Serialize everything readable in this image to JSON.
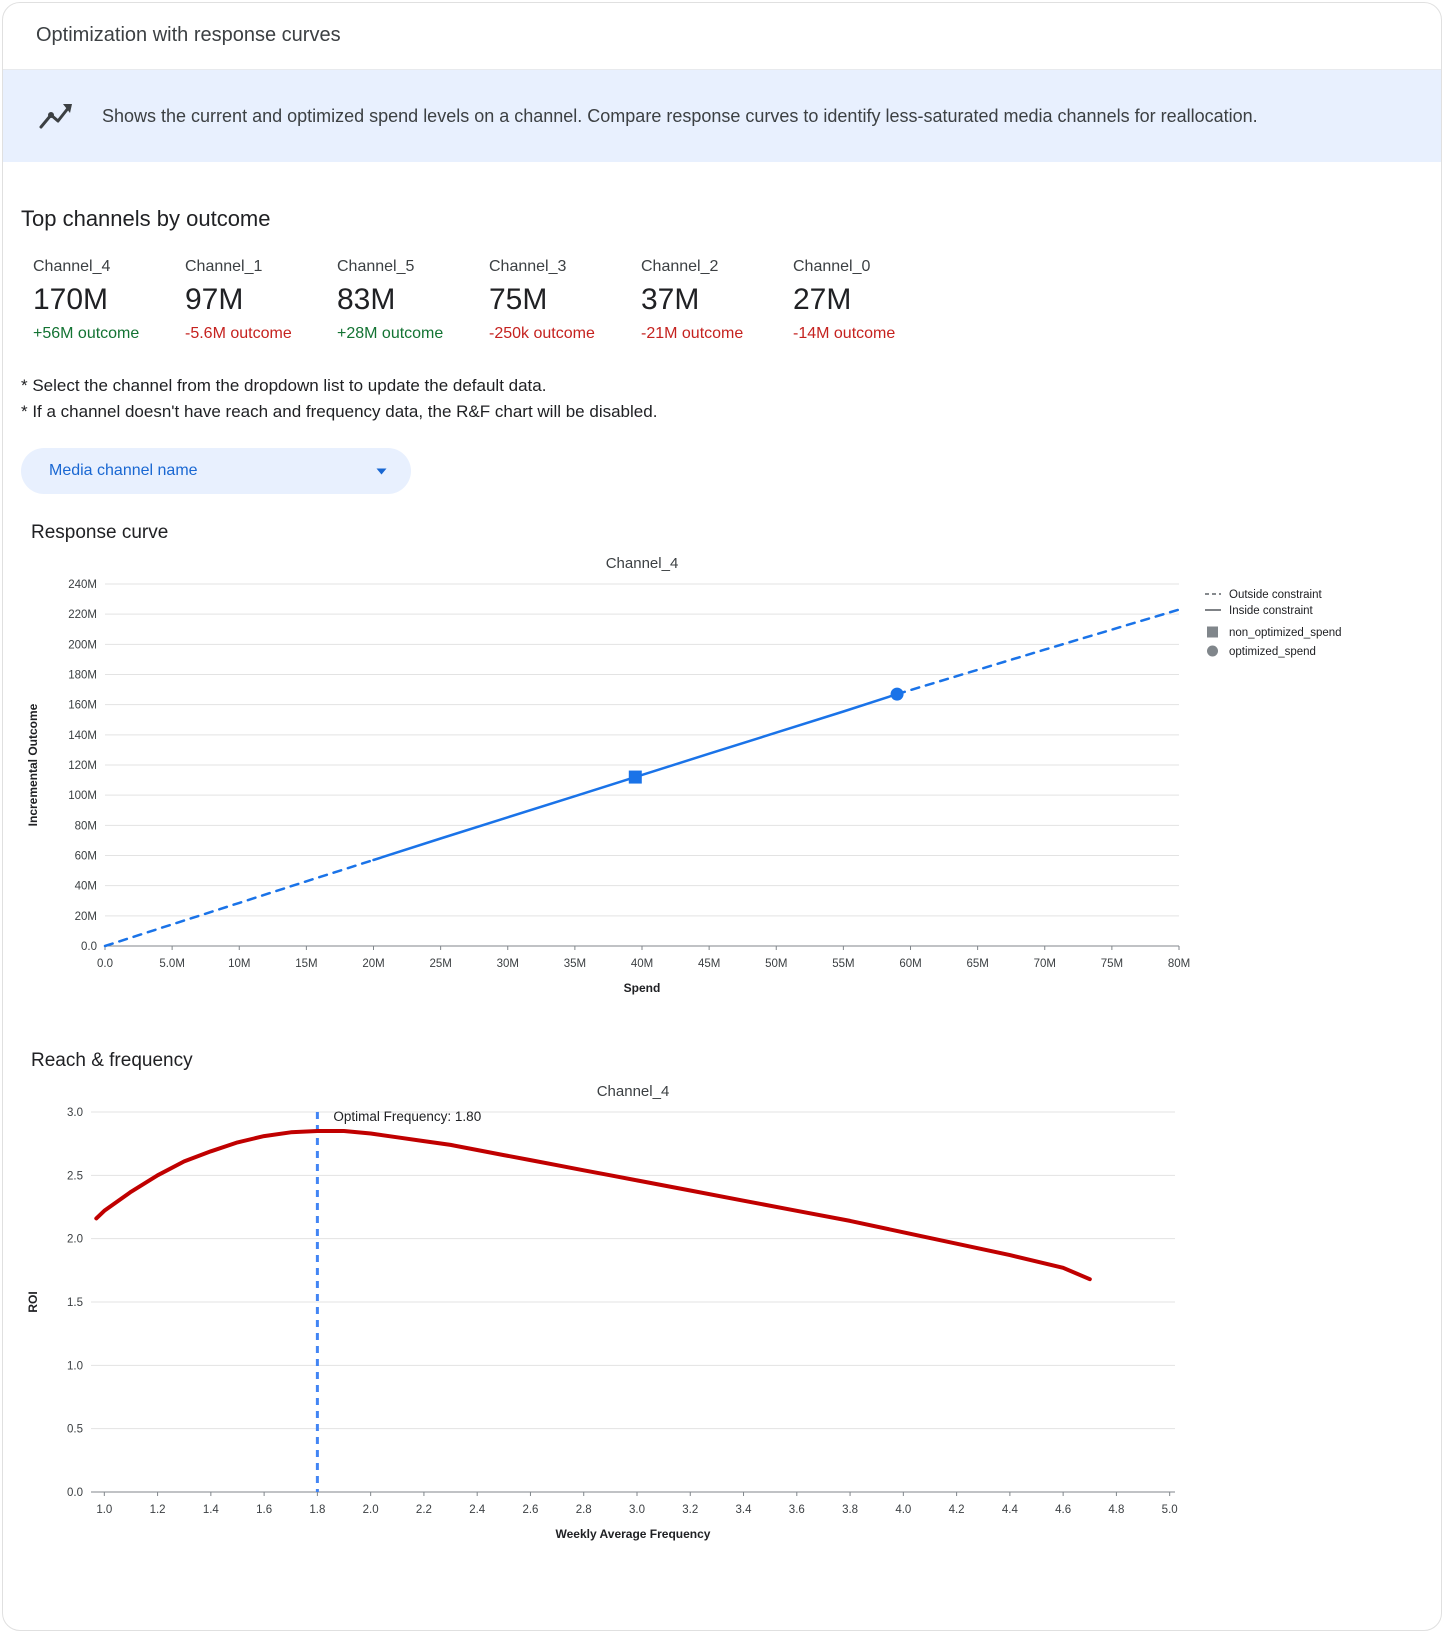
{
  "header": {
    "title": "Optimization with response curves"
  },
  "banner": {
    "text": "Shows the current and optimized spend levels on a channel. Compare response curves to identify less-saturated media channels for reallocation."
  },
  "colors": {
    "accent_blue": "#1a73e8",
    "link_blue": "#1967d2",
    "positive_green": "#137333",
    "negative_red": "#c5221f",
    "banner_bg": "#e8f0fe",
    "rf_curve_red": "#c00000",
    "optimal_freq_line_blue": "#4285f4"
  },
  "top_channels": {
    "title": "Top channels by outcome",
    "items": [
      {
        "name": "Channel_4",
        "value": "170M",
        "delta": "+56M outcome",
        "direction": "up"
      },
      {
        "name": "Channel_1",
        "value": "97M",
        "delta": "-5.6M outcome",
        "direction": "down"
      },
      {
        "name": "Channel_5",
        "value": "83M",
        "delta": "+28M outcome",
        "direction": "up"
      },
      {
        "name": "Channel_3",
        "value": "75M",
        "delta": "-250k outcome",
        "direction": "down"
      },
      {
        "name": "Channel_2",
        "value": "37M",
        "delta": "-21M outcome",
        "direction": "down"
      },
      {
        "name": "Channel_0",
        "value": "27M",
        "delta": "-14M outcome",
        "direction": "down"
      }
    ]
  },
  "notes": [
    "* Select the channel from the dropdown list to update the default data.",
    "* If a channel doesn't have reach and frequency data, the R&F chart will be disabled."
  ],
  "dropdown": {
    "label": "Media channel name"
  },
  "sections": {
    "response_curve": "Response curve",
    "reach_frequency": "Reach & frequency"
  },
  "chart_data": [
    {
      "type": "line",
      "mount": "chart1",
      "title": "Channel_4",
      "xlabel": "Spend",
      "ylabel": "Incremental Outcome",
      "xlim": [
        0,
        80
      ],
      "ylim": [
        0,
        240
      ],
      "x_unit": "millions",
      "y_unit": "millions",
      "grid": "horizontal",
      "legend_position": "right",
      "xticks": [
        0,
        5,
        10,
        15,
        20,
        25,
        30,
        35,
        40,
        45,
        50,
        55,
        60,
        65,
        70,
        75,
        80
      ],
      "xtick_labels": [
        "0.0",
        "5.0M",
        "10M",
        "15M",
        "20M",
        "25M",
        "30M",
        "35M",
        "40M",
        "45M",
        "50M",
        "55M",
        "60M",
        "65M",
        "70M",
        "75M",
        "80M"
      ],
      "yticks": [
        0,
        20,
        40,
        60,
        80,
        100,
        120,
        140,
        160,
        180,
        200,
        220,
        240
      ],
      "ytick_labels": [
        "0.0",
        "20M",
        "40M",
        "60M",
        "80M",
        "100M",
        "120M",
        "140M",
        "160M",
        "180M",
        "200M",
        "220M",
        "240M"
      ],
      "series": [
        {
          "name": "outside-constraint-lower",
          "color": "#1a73e8",
          "dash": true,
          "width": 2.5,
          "points": [
            [
              0,
              0
            ],
            [
              5,
              14.3
            ],
            [
              10,
              28.6
            ],
            [
              15,
              42.9
            ],
            [
              20,
              57
            ]
          ]
        },
        {
          "name": "inside-constraint",
          "color": "#1a73e8",
          "dash": false,
          "width": 2.5,
          "points": [
            [
              20,
              57
            ],
            [
              25,
              71.3
            ],
            [
              30,
              85.3
            ],
            [
              35,
              99.3
            ],
            [
              39.5,
              112
            ],
            [
              45,
              127.5
            ],
            [
              50,
              141.5
            ],
            [
              55,
              155.5
            ],
            [
              59,
              167
            ]
          ]
        },
        {
          "name": "outside-constraint-upper",
          "color": "#1a73e8",
          "dash": true,
          "width": 2.5,
          "points": [
            [
              59,
              167
            ],
            [
              70,
              196.5
            ],
            [
              80,
              223
            ]
          ]
        }
      ],
      "markers": [
        {
          "name": "non_optimized_spend",
          "shape": "square",
          "x": 39.5,
          "y": 112,
          "color": "#1a73e8"
        },
        {
          "name": "optimized_spend",
          "shape": "circle",
          "x": 59,
          "y": 167,
          "color": "#1a73e8"
        }
      ],
      "legend": [
        {
          "label": "Outside constraint",
          "sample": "dash"
        },
        {
          "label": "Inside constraint",
          "sample": "line"
        },
        {
          "label": "non_optimized_spend",
          "sample": "square"
        },
        {
          "label": "optimized_spend",
          "sample": "circle"
        }
      ]
    },
    {
      "type": "line",
      "mount": "chart2",
      "title": "Channel_4",
      "xlabel": "Weekly Average Frequency",
      "ylabel": "ROI",
      "xlim": [
        0.95,
        5.02
      ],
      "ylim": [
        0,
        3.0
      ],
      "grid": "horizontal",
      "xticks": [
        1.0,
        1.2,
        1.4,
        1.6,
        1.8,
        2.0,
        2.2,
        2.4,
        2.6,
        2.8,
        3.0,
        3.2,
        3.4,
        3.6,
        3.8,
        4.0,
        4.2,
        4.4,
        4.6,
        4.8,
        5.0
      ],
      "xtick_labels": [
        "1.0",
        "1.2",
        "1.4",
        "1.6",
        "1.8",
        "2.0",
        "2.2",
        "2.4",
        "2.6",
        "2.8",
        "3.0",
        "3.2",
        "3.4",
        "3.6",
        "3.8",
        "4.0",
        "4.2",
        "4.4",
        "4.6",
        "4.8",
        "5.0"
      ],
      "yticks": [
        0,
        0.5,
        1.0,
        1.5,
        2.0,
        2.5,
        3.0
      ],
      "ytick_labels": [
        "0.0",
        "0.5",
        "1.0",
        "1.5",
        "2.0",
        "2.5",
        "3.0"
      ],
      "series": [
        {
          "name": "roi-vs-frequency",
          "color": "#c00000",
          "dash": false,
          "width": 4,
          "points": [
            [
              0.97,
              2.16
            ],
            [
              1.0,
              2.22
            ],
            [
              1.1,
              2.37
            ],
            [
              1.2,
              2.5
            ],
            [
              1.3,
              2.61
            ],
            [
              1.4,
              2.69
            ],
            [
              1.5,
              2.76
            ],
            [
              1.6,
              2.81
            ],
            [
              1.7,
              2.84
            ],
            [
              1.8,
              2.85
            ],
            [
              1.9,
              2.85
            ],
            [
              2.0,
              2.83
            ],
            [
              2.1,
              2.8
            ],
            [
              2.2,
              2.77
            ],
            [
              2.3,
              2.74
            ],
            [
              2.4,
              2.7
            ],
            [
              2.5,
              2.66
            ],
            [
              2.6,
              2.62
            ],
            [
              2.7,
              2.58
            ],
            [
              2.8,
              2.54
            ],
            [
              2.9,
              2.5
            ],
            [
              3.0,
              2.46
            ],
            [
              3.2,
              2.38
            ],
            [
              3.4,
              2.3
            ],
            [
              3.6,
              2.22
            ],
            [
              3.8,
              2.14
            ],
            [
              4.0,
              2.05
            ],
            [
              4.2,
              1.96
            ],
            [
              4.4,
              1.87
            ],
            [
              4.6,
              1.77
            ],
            [
              4.7,
              1.68
            ]
          ]
        }
      ],
      "optimal_frequency": 1.8,
      "annotations": [
        {
          "type": "vline",
          "x": 1.8,
          "color": "#4285f4",
          "dash": true,
          "width": 3
        },
        {
          "type": "text",
          "x": 1.83,
          "y": 2.93,
          "text": "Optimal Frequency: 1.80",
          "color": "#202124"
        }
      ]
    }
  ]
}
